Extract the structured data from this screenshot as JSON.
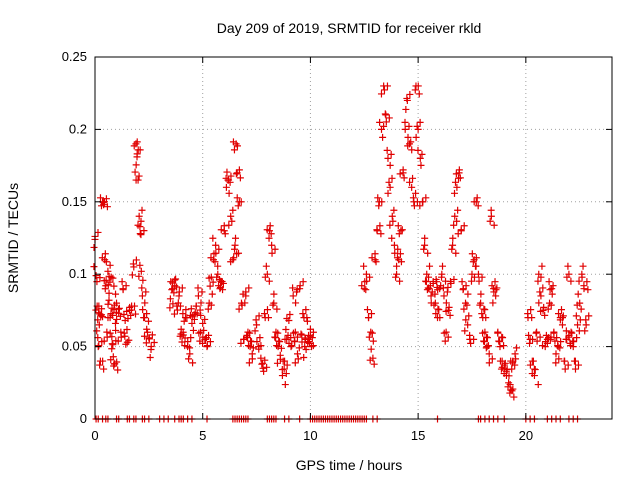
{
  "chart_data": {
    "type": "scatter",
    "title": "Day 209 of 2019, SRMTID for receiver rkld",
    "xlabel": "GPS time / hours",
    "ylabel": "SRMTID / TECUs",
    "xlim": [
      0,
      24
    ],
    "ylim": [
      0,
      0.25
    ],
    "xticks": [
      0,
      5,
      10,
      15,
      20
    ],
    "xtick_labels": [
      "0",
      "5",
      "10",
      "15",
      "20"
    ],
    "yticks": [
      0,
      0.05,
      0.1,
      0.15,
      0.2,
      0.25
    ],
    "ytick_labels": [
      "0",
      "0.05",
      "0.1",
      "0.15",
      "0.2",
      "0.25"
    ],
    "grid": true,
    "marker": "+",
    "series": [
      {
        "name": "SRMTID",
        "color": "#e00000",
        "points": [
          [
            0.0,
            0.124
          ],
          [
            0.05,
            0.099
          ],
          [
            0.1,
            0.078
          ],
          [
            0.15,
            0.05
          ],
          [
            0.2,
            0.065
          ],
          [
            0.25,
            0.04
          ],
          [
            0.3,
            0.072
          ],
          [
            0.35,
            0.15
          ],
          [
            0.4,
            0.148
          ],
          [
            0.45,
            0.11
          ],
          [
            0.5,
            0.092
          ],
          [
            0.55,
            0.06
          ],
          [
            0.6,
            0.102
          ],
          [
            0.65,
            0.082
          ],
          [
            0.7,
            0.07
          ],
          [
            0.75,
            0.098
          ],
          [
            0.8,
            0.052
          ],
          [
            0.85,
            0.043
          ],
          [
            0.9,
            0.038
          ],
          [
            0.95,
            0.066
          ],
          [
            1.0,
            0.08
          ],
          [
            1.1,
            0.073
          ],
          [
            1.2,
            0.06
          ],
          [
            1.3,
            0.09
          ],
          [
            1.4,
            0.068
          ],
          [
            1.5,
            0.053
          ],
          [
            1.6,
            0.075
          ],
          [
            1.7,
            0.078
          ],
          [
            1.8,
            0.105
          ],
          [
            1.9,
            0.19
          ],
          [
            1.95,
            0.181
          ],
          [
            2.0,
            0.165
          ],
          [
            2.05,
            0.14
          ],
          [
            2.1,
            0.128
          ],
          [
            2.15,
            0.102
          ],
          [
            2.2,
            0.085
          ],
          [
            2.3,
            0.07
          ],
          [
            2.4,
            0.062
          ],
          [
            2.5,
            0.056
          ],
          [
            2.6,
            0.048
          ],
          [
            3.5,
            0.083
          ],
          [
            3.6,
            0.09
          ],
          [
            3.7,
            0.096
          ],
          [
            3.8,
            0.078
          ],
          [
            3.9,
            0.085
          ],
          [
            4.0,
            0.062
          ],
          [
            4.1,
            0.058
          ],
          [
            4.2,
            0.07
          ],
          [
            4.3,
            0.05
          ],
          [
            4.4,
            0.045
          ],
          [
            4.5,
            0.066
          ],
          [
            4.6,
            0.072
          ],
          [
            4.7,
            0.078
          ],
          [
            4.8,
            0.085
          ],
          [
            4.9,
            0.06
          ],
          [
            5.0,
            0.066
          ],
          [
            5.1,
            0.055
          ],
          [
            5.2,
            0.05
          ],
          [
            5.3,
            0.08
          ],
          [
            5.4,
            0.098
          ],
          [
            5.5,
            0.11
          ],
          [
            5.6,
            0.12
          ],
          [
            5.7,
            0.1
          ],
          [
            5.8,
            0.09
          ],
          [
            5.9,
            0.095
          ],
          [
            6.0,
            0.13
          ],
          [
            6.1,
            0.16
          ],
          [
            6.2,
            0.165
          ],
          [
            6.3,
            0.14
          ],
          [
            6.4,
            0.11
          ],
          [
            6.5,
            0.12
          ],
          [
            6.55,
            0.19
          ],
          [
            6.6,
            0.17
          ],
          [
            6.7,
            0.15
          ],
          [
            6.8,
            0.08
          ],
          [
            6.9,
            0.055
          ],
          [
            7.0,
            0.085
          ],
          [
            7.1,
            0.06
          ],
          [
            7.2,
            0.05
          ],
          [
            7.3,
            0.045
          ],
          [
            7.5,
            0.065
          ],
          [
            7.6,
            0.05
          ],
          [
            7.7,
            0.042
          ],
          [
            7.8,
            0.035
          ],
          [
            7.9,
            0.07
          ],
          [
            8.0,
            0.1
          ],
          [
            8.1,
            0.13
          ],
          [
            8.2,
            0.12
          ],
          [
            8.3,
            0.08
          ],
          [
            8.4,
            0.06
          ],
          [
            8.5,
            0.05
          ],
          [
            8.6,
            0.044
          ],
          [
            8.7,
            0.03
          ],
          [
            8.8,
            0.04
          ],
          [
            8.9,
            0.055
          ],
          [
            9.0,
            0.068
          ],
          [
            9.1,
            0.05
          ],
          [
            9.2,
            0.085
          ],
          [
            9.3,
            0.06
          ],
          [
            9.4,
            0.045
          ],
          [
            9.5,
            0.09
          ],
          [
            9.6,
            0.058
          ],
          [
            9.7,
            0.07
          ],
          [
            9.8,
            0.048
          ],
          [
            9.9,
            0.055
          ],
          [
            10.0,
            0.062
          ],
          [
            10.05,
            0.05
          ],
          [
            12.5,
            0.09
          ],
          [
            12.6,
            0.1
          ],
          [
            12.7,
            0.07
          ],
          [
            12.8,
            0.06
          ],
          [
            12.9,
            0.042
          ],
          [
            13.0,
            0.11
          ],
          [
            13.1,
            0.13
          ],
          [
            13.2,
            0.15
          ],
          [
            13.3,
            0.2
          ],
          [
            13.4,
            0.23
          ],
          [
            13.5,
            0.21
          ],
          [
            13.6,
            0.18
          ],
          [
            13.7,
            0.16
          ],
          [
            13.8,
            0.14
          ],
          [
            13.9,
            0.12
          ],
          [
            14.0,
            0.1
          ],
          [
            14.1,
            0.11
          ],
          [
            14.2,
            0.13
          ],
          [
            14.3,
            0.17
          ],
          [
            14.4,
            0.2
          ],
          [
            14.5,
            0.22
          ],
          [
            14.6,
            0.19
          ],
          [
            14.7,
            0.16
          ],
          [
            14.8,
            0.15
          ],
          [
            14.9,
            0.23
          ],
          [
            15.0,
            0.2
          ],
          [
            15.1,
            0.18
          ],
          [
            15.2,
            0.15
          ],
          [
            15.3,
            0.12
          ],
          [
            15.4,
            0.1
          ],
          [
            15.5,
            0.09
          ],
          [
            15.6,
            0.085
          ],
          [
            15.7,
            0.095
          ],
          [
            15.8,
            0.08
          ],
          [
            15.9,
            0.07
          ],
          [
            16.0,
            0.09
          ],
          [
            16.1,
            0.1
          ],
          [
            16.2,
            0.085
          ],
          [
            16.3,
            0.06
          ],
          [
            16.4,
            0.075
          ],
          [
            16.5,
            0.095
          ],
          [
            16.6,
            0.12
          ],
          [
            16.7,
            0.14
          ],
          [
            16.8,
            0.16
          ],
          [
            16.9,
            0.17
          ],
          [
            17.0,
            0.13
          ],
          [
            17.1,
            0.09
          ],
          [
            17.2,
            0.08
          ],
          [
            17.3,
            0.065
          ],
          [
            17.4,
            0.055
          ],
          [
            17.5,
            0.1
          ],
          [
            17.6,
            0.11
          ],
          [
            17.7,
            0.15
          ],
          [
            17.8,
            0.1
          ],
          [
            17.9,
            0.08
          ],
          [
            18.0,
            0.07
          ],
          [
            18.1,
            0.06
          ],
          [
            18.2,
            0.05
          ],
          [
            18.3,
            0.045
          ],
          [
            18.4,
            0.14
          ],
          [
            18.5,
            0.09
          ],
          [
            18.6,
            0.085
          ],
          [
            18.7,
            0.06
          ],
          [
            18.8,
            0.05
          ],
          [
            18.9,
            0.04
          ],
          [
            19.0,
            0.035
          ],
          [
            19.1,
            0.03
          ],
          [
            19.2,
            0.025
          ],
          [
            19.3,
            0.02
          ],
          [
            19.4,
            0.04
          ],
          [
            19.5,
            0.045
          ],
          [
            20.1,
            0.07
          ],
          [
            20.2,
            0.055
          ],
          [
            20.3,
            0.04
          ],
          [
            20.4,
            0.03
          ],
          [
            20.5,
            0.06
          ],
          [
            20.6,
            0.1
          ],
          [
            20.7,
            0.085
          ],
          [
            20.8,
            0.075
          ],
          [
            20.9,
            0.05
          ],
          [
            21.0,
            0.055
          ],
          [
            21.1,
            0.08
          ],
          [
            21.2,
            0.09
          ],
          [
            21.3,
            0.06
          ],
          [
            21.4,
            0.045
          ],
          [
            21.5,
            0.05
          ],
          [
            21.6,
            0.07
          ],
          [
            21.7,
            0.065
          ],
          [
            21.8,
            0.04
          ],
          [
            21.9,
            0.055
          ],
          [
            22.0,
            0.1
          ],
          [
            22.1,
            0.06
          ],
          [
            22.2,
            0.05
          ],
          [
            22.3,
            0.04
          ],
          [
            22.4,
            0.065
          ],
          [
            22.5,
            0.08
          ],
          [
            22.6,
            0.1
          ],
          [
            22.7,
            0.09
          ],
          [
            22.8,
            0.065
          ]
        ]
      }
    ],
    "zero_point_times": [
      0.05,
      0.15,
      0.35,
      0.5,
      0.6,
      1.0,
      1.1,
      1.5,
      1.6,
      1.8,
      1.9,
      2.2,
      2.3,
      2.5,
      3.0,
      3.2,
      3.4,
      3.7,
      3.9,
      4.0,
      4.1,
      4.3,
      4.5,
      5.2,
      6.4,
      6.5,
      6.6,
      6.7,
      6.8,
      6.9,
      7.0,
      7.1,
      8.0,
      8.1,
      8.2,
      8.3,
      8.4,
      8.8,
      9.0,
      9.5,
      10.0,
      10.1,
      10.2,
      10.3,
      10.4,
      10.5,
      10.6,
      10.7,
      10.8,
      10.9,
      11.0,
      11.1,
      11.2,
      11.3,
      11.4,
      11.5,
      11.6,
      11.7,
      11.8,
      11.9,
      12.0,
      12.1,
      12.2,
      12.3,
      12.4,
      12.5,
      12.6,
      12.9,
      13.1,
      15.9,
      17.8,
      17.9,
      18.1,
      18.3,
      18.5,
      18.7,
      19.0,
      20.0,
      20.2,
      20.4,
      21.0,
      21.2,
      21.4,
      21.6,
      22.0,
      22.2,
      22.4
    ]
  }
}
